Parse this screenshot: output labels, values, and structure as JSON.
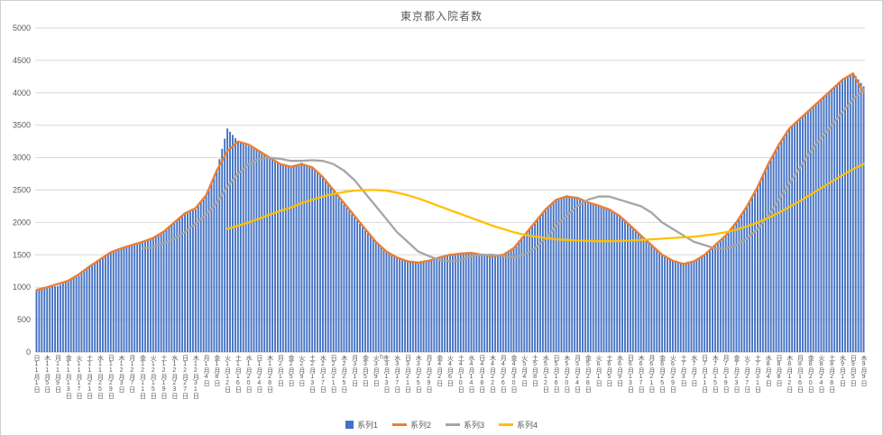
{
  "chart_data": {
    "type": "combo-bar-line",
    "title": "東京都入院者数",
    "legend_position": "bottom",
    "grid": "horizontal",
    "y_axis": {
      "min": 0,
      "max": 5000,
      "step": 500,
      "ticks": [
        0,
        500,
        1000,
        1500,
        2000,
        2500,
        3000,
        3500,
        4000,
        4500,
        5000
      ]
    },
    "x_axis": {
      "tick_interval_days": 4,
      "dow": [
        "日",
        "木",
        "月",
        "金",
        "火",
        "土",
        "水",
        "日",
        "木",
        "月",
        "金",
        "火",
        "土",
        "水",
        "日",
        "木",
        "月",
        "金",
        "火",
        "土",
        "水",
        "日",
        "木",
        "月",
        "金",
        "火",
        "土",
        "水",
        "日",
        "木",
        "月",
        "金",
        "火",
        "土",
        "水",
        "日",
        "木",
        "月",
        "金",
        "火",
        "土",
        "水",
        "日",
        "木",
        "月",
        "金",
        "火",
        "土",
        "水",
        "日",
        "木",
        "月",
        "金",
        "火",
        "土",
        "水",
        "日",
        "木",
        "月",
        "金",
        "火",
        "土",
        "水",
        "日",
        "木",
        "月",
        "金",
        "火",
        "土",
        "水",
        "日",
        "木",
        "月",
        "金",
        "火",
        "土",
        "水",
        "日",
        "木"
      ],
      "dates": [
        "11月1日",
        "11月5日",
        "11月9日",
        "11月13日",
        "11月17日",
        "11月21日",
        "11月25日",
        "11月29日",
        "12月3日",
        "12月7日",
        "12月11日",
        "12月15日",
        "12月19日",
        "12月23日",
        "12月27日",
        "12月31日",
        "1月4日",
        "1月8日",
        "1月12日",
        "1月16日",
        "1月20日",
        "1月24日",
        "1月28日",
        "2月1日",
        "2月5日",
        "2月9日",
        "2月13日",
        "2月17日",
        "2月21日",
        "2月25日",
        "3月1日",
        "3月5日",
        "3月9日",
        "3月13日",
        "3月17日",
        "3月21日",
        "3月25日",
        "3月29日",
        "4月2日",
        "4月6日",
        "4月10日",
        "4月14日",
        "4月18日",
        "4月22日",
        "4月26日",
        "4月30日",
        "5月4日",
        "5月8日",
        "5月12日",
        "5月16日",
        "5月20日",
        "5月24日",
        "5月28日",
        "6月1日",
        "6月5日",
        "6月9日",
        "6月13日",
        "6月17日",
        "6月21日",
        "6月25日",
        "6月29日",
        "7月3日",
        "7月7日",
        "7月11日",
        "7月15日",
        "7月19日",
        "7月23日",
        "7月27日",
        "7月31日",
        "8月4日",
        "8月8日",
        "8月12日",
        "8月16日",
        "8月20日",
        "8月24日",
        "8月28日",
        "9月1日",
        "9月5日",
        "9月9日"
      ]
    },
    "series": [
      {
        "name": "系列1",
        "type": "bar",
        "color": "#4472C4",
        "values": [
          950,
          1000,
          1020,
          1100,
          1180,
          1320,
          1420,
          1530,
          1600,
          1640,
          1700,
          1760,
          1860,
          2000,
          2150,
          2200,
          2420,
          2820,
          3450,
          3250,
          3180,
          3100,
          2980,
          2900,
          2850,
          2920,
          2850,
          2700,
          2480,
          2280,
          2080,
          1880,
          1700,
          1550,
          1460,
          1400,
          1380,
          1420,
          1460,
          1500,
          1530,
          1540,
          1500,
          1480,
          1510,
          1620,
          1820,
          2010,
          2200,
          2360,
          2420,
          2380,
          2300,
          2260,
          2210,
          2100,
          1950,
          1800,
          1650,
          1500,
          1410,
          1360,
          1400,
          1510,
          1660,
          1810,
          2010,
          2260,
          2560,
          2910,
          3210,
          3460,
          3610,
          3760,
          3910,
          4060,
          4210,
          4310,
          4100
        ]
      },
      {
        "name": "系列2",
        "type": "line",
        "color": "#ED7D31",
        "values": [
          960,
          1000,
          1050,
          1100,
          1200,
          1320,
          1430,
          1540,
          1600,
          1650,
          1700,
          1760,
          1860,
          2000,
          2140,
          2220,
          2420,
          2800,
          3100,
          3250,
          3200,
          3100,
          3000,
          2900,
          2860,
          2900,
          2850,
          2700,
          2500,
          2300,
          2100,
          1900,
          1700,
          1550,
          1460,
          1400,
          1380,
          1410,
          1460,
          1500,
          1520,
          1530,
          1500,
          1480,
          1500,
          1600,
          1800,
          2000,
          2200,
          2350,
          2400,
          2380,
          2310,
          2260,
          2200,
          2100,
          1950,
          1800,
          1650,
          1500,
          1410,
          1360,
          1400,
          1500,
          1650,
          1800,
          2000,
          2250,
          2550,
          2900,
          3200,
          3450,
          3600,
          3750,
          3900,
          4050,
          4200,
          4300,
          4000
        ]
      },
      {
        "name": "系列3",
        "type": "line",
        "color": "#A5A5A5",
        "values": [
          null,
          null,
          null,
          null,
          null,
          null,
          null,
          null,
          null,
          null,
          1600,
          1620,
          1680,
          1750,
          1850,
          1980,
          2120,
          2300,
          2550,
          2750,
          2900,
          2980,
          3000,
          2980,
          2950,
          2950,
          2960,
          2950,
          2900,
          2800,
          2650,
          2450,
          2250,
          2050,
          1850,
          1700,
          1550,
          1480,
          1420,
          1400,
          1420,
          1480,
          1500,
          1500,
          1480,
          1470,
          1500,
          1600,
          1750,
          1950,
          2100,
          2250,
          2350,
          2400,
          2400,
          2350,
          2300,
          2250,
          2150,
          2000,
          1900,
          1800,
          1700,
          1650,
          1600,
          1600,
          1650,
          1750,
          1900,
          2100,
          2350,
          2600,
          2850,
          3100,
          3300,
          3500,
          3700,
          3900,
          4050
        ]
      },
      {
        "name": "系列4",
        "type": "line",
        "color": "#FFC000",
        "values": [
          null,
          null,
          null,
          null,
          null,
          null,
          null,
          null,
          null,
          null,
          null,
          null,
          null,
          null,
          null,
          null,
          null,
          null,
          1900,
          1950,
          2000,
          2060,
          2120,
          2180,
          2230,
          2300,
          2350,
          2400,
          2440,
          2470,
          2490,
          2500,
          2500,
          2490,
          2460,
          2420,
          2370,
          2310,
          2250,
          2190,
          2130,
          2070,
          2010,
          1950,
          1900,
          1850,
          1810,
          1780,
          1760,
          1740,
          1730,
          1720,
          1715,
          1710,
          1710,
          1715,
          1720,
          1730,
          1740,
          1750,
          1760,
          1770,
          1780,
          1800,
          1820,
          1850,
          1890,
          1940,
          2000,
          2070,
          2150,
          2240,
          2330,
          2430,
          2530,
          2630,
          2730,
          2820,
          2900
        ]
      }
    ],
    "annotation": {
      "text": "ha"
    }
  }
}
